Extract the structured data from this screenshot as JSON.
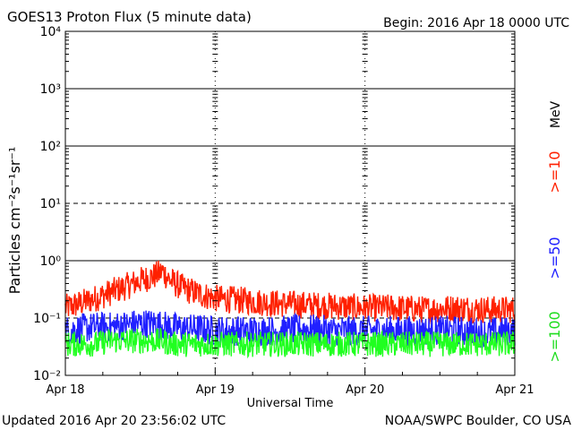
{
  "chart_data": {
    "type": "line",
    "title": "GOES13 Proton Flux (5 minute data)",
    "begin_label": "Begin: 2016 Apr 18 0000 UTC",
    "xlabel": "Universal Time",
    "ylabel": "Particles cm⁻²s⁻¹sr⁻¹",
    "yscale": "log",
    "ylim": [
      0.01,
      10000
    ],
    "x_ticks": [
      "Apr 18",
      "Apr 19",
      "Apr 20",
      "Apr 21"
    ],
    "y_ticks": [
      "10⁻²",
      "10⁻¹",
      "10⁰",
      "10¹",
      "10²",
      "10³",
      "10⁴"
    ],
    "xlim_days": [
      0,
      3
    ],
    "x": [
      0.0,
      0.1,
      0.2,
      0.3,
      0.4,
      0.5,
      0.6,
      0.65,
      0.7,
      0.8,
      0.9,
      1.0,
      1.2,
      1.4,
      1.6,
      1.8,
      2.0,
      2.2,
      2.4,
      2.6,
      2.8,
      3.0
    ],
    "series": [
      {
        "name": ">=10",
        "color": "#ff2000",
        "values": [
          0.15,
          0.18,
          0.22,
          0.28,
          0.35,
          0.45,
          0.55,
          0.65,
          0.45,
          0.32,
          0.26,
          0.22,
          0.2,
          0.18,
          0.17,
          0.16,
          0.15,
          0.15,
          0.14,
          0.15,
          0.14,
          0.14
        ]
      },
      {
        "name": ">=50",
        "color": "#2020ff",
        "values": [
          0.06,
          0.065,
          0.07,
          0.07,
          0.075,
          0.08,
          0.08,
          0.075,
          0.07,
          0.065,
          0.065,
          0.06,
          0.06,
          0.06,
          0.065,
          0.06,
          0.06,
          0.06,
          0.06,
          0.06,
          0.055,
          0.06
        ]
      },
      {
        "name": ">=100",
        "color": "#20ff20",
        "values": [
          0.035,
          0.035,
          0.035,
          0.04,
          0.04,
          0.04,
          0.04,
          0.04,
          0.035,
          0.035,
          0.035,
          0.035,
          0.035,
          0.035,
          0.035,
          0.035,
          0.035,
          0.035,
          0.035,
          0.035,
          0.035,
          0.035
        ]
      }
    ],
    "legend_unit": "MeV",
    "grid": true,
    "legend_placement": "right"
  },
  "footer": {
    "updated": "Updated 2016 Apr 20 23:56:02 UTC",
    "source": "NOAA/SWPC Boulder, CO USA"
  }
}
